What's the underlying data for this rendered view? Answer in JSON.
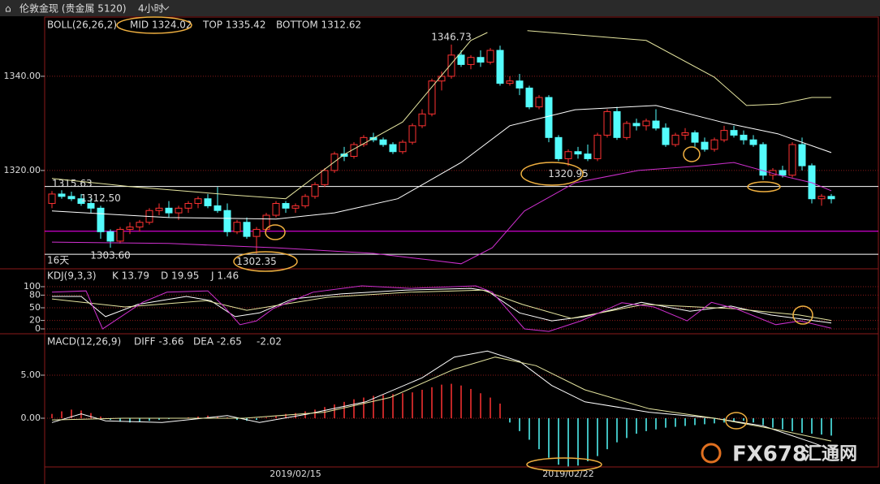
{
  "header": {
    "symbol": "伦敦金现 (贵金属 5120)",
    "period": "4小时",
    "days": "16天",
    "watermark": "FX678",
    "watermark_cn": "汇通网"
  },
  "chart_data": [
    {
      "type": "candlestick",
      "legend": {
        "name": "BOLL(26,26,2)",
        "mid": "MID 1324.02",
        "top": "TOP 1335.42",
        "bottom": "BOTTOM 1312.62"
      },
      "up_color": "#ff3232",
      "down_color": "#54fcfc",
      "grid": true,
      "ylim": [
        1299.3,
        1352.4
      ],
      "yticks": [
        {
          "value": 1340,
          "label": "1340.00"
        },
        {
          "value": 1320,
          "label": "1320.00"
        }
      ],
      "categories": [
        null,
        null,
        null,
        null,
        null,
        null,
        null,
        null,
        null,
        null,
        null,
        null,
        null,
        null,
        null,
        null,
        null,
        null,
        null,
        null,
        null,
        null,
        null,
        null,
        null,
        "2019/02/15",
        null,
        null,
        null,
        null,
        null,
        null,
        null,
        null,
        null,
        null,
        null,
        null,
        null,
        null,
        null,
        null,
        null,
        null,
        null,
        null,
        null,
        null,
        null,
        null,
        null,
        null,
        null,
        "2019/02/22",
        null,
        null,
        null,
        null,
        null,
        null,
        null,
        null,
        null,
        null,
        null,
        null,
        null,
        null,
        null,
        null,
        null,
        null,
        null,
        null,
        null,
        null,
        null,
        null,
        null,
        null,
        null
      ],
      "values": [
        [
          1313,
          1315.63,
          1312,
          1315
        ],
        [
          1315,
          1315.8,
          1314,
          1314.5
        ],
        [
          1314.5,
          1315.5,
          1313.5,
          1314
        ],
        [
          1314,
          1315,
          1312.5,
          1313
        ],
        [
          1313,
          1314,
          1311,
          1312
        ],
        [
          1312,
          1312.5,
          1305.5,
          1307
        ],
        [
          1307,
          1307.5,
          1303.6,
          1305
        ],
        [
          1305,
          1308,
          1304.5,
          1307.5
        ],
        [
          1307.5,
          1309,
          1306.5,
          1308
        ],
        [
          1308,
          1309.5,
          1307,
          1309
        ],
        [
          1309,
          1312,
          1308.5,
          1311.5
        ],
        [
          1311.5,
          1313,
          1310.5,
          1312
        ],
        [
          1312,
          1313.5,
          1310,
          1311
        ],
        [
          1311,
          1312.5,
          1309.5,
          1312
        ],
        [
          1312,
          1313.5,
          1311,
          1313
        ],
        [
          1313,
          1314.5,
          1312,
          1314
        ],
        [
          1314,
          1315,
          1312,
          1312.5
        ],
        [
          1312.5,
          1316.5,
          1311,
          1311.5
        ],
        [
          1311.5,
          1313,
          1306,
          1307
        ],
        [
          1307,
          1309.5,
          1306.5,
          1309
        ],
        [
          1309,
          1310,
          1305.5,
          1306
        ],
        [
          1306,
          1308,
          1302.35,
          1307.5
        ],
        [
          1307.5,
          1311,
          1307,
          1310.5
        ],
        [
          1310.5,
          1313.5,
          1310,
          1313
        ],
        [
          1313,
          1313.5,
          1311,
          1312
        ],
        [
          1312,
          1313,
          1311,
          1312.5
        ],
        [
          1312.5,
          1315,
          1312,
          1314.5
        ],
        [
          1314.5,
          1317.5,
          1314,
          1317
        ],
        [
          1317,
          1320.5,
          1316.5,
          1320
        ],
        [
          1320,
          1324,
          1319.5,
          1323.5
        ],
        [
          1323.5,
          1325,
          1322,
          1323
        ],
        [
          1323,
          1326,
          1322.5,
          1325.5
        ],
        [
          1325.5,
          1327.5,
          1325,
          1327
        ],
        [
          1327,
          1328,
          1326,
          1326.5
        ],
        [
          1326.5,
          1327,
          1325,
          1325.5
        ],
        [
          1325.5,
          1326,
          1323.5,
          1324
        ],
        [
          1324,
          1326.5,
          1323.5,
          1326
        ],
        [
          1326,
          1330,
          1325.5,
          1329.5
        ],
        [
          1329.5,
          1333,
          1329,
          1332
        ],
        [
          1332,
          1339.5,
          1331.5,
          1339
        ],
        [
          1339,
          1341,
          1337,
          1340
        ],
        [
          1340,
          1346.73,
          1339.5,
          1344.5
        ],
        [
          1344.5,
          1345.5,
          1342,
          1342.5
        ],
        [
          1342.5,
          1344.5,
          1341.5,
          1344
        ],
        [
          1344,
          1345.5,
          1342,
          1343
        ],
        [
          1343,
          1346,
          1342.5,
          1345.5
        ],
        [
          1345.5,
          1346.5,
          1338,
          1338.5
        ],
        [
          1338.5,
          1340,
          1338,
          1339
        ],
        [
          1339,
          1340.5,
          1336,
          1337.5
        ],
        [
          1337.5,
          1338,
          1333,
          1333.5
        ],
        [
          1333.5,
          1336,
          1333,
          1335.5
        ],
        [
          1335.5,
          1336,
          1326,
          1327
        ],
        [
          1327,
          1327.5,
          1322,
          1322.5
        ],
        [
          1322.5,
          1324.5,
          1320.95,
          1324
        ],
        [
          1324,
          1325,
          1322.5,
          1323.5
        ],
        [
          1323.5,
          1325.5,
          1322,
          1322.5
        ],
        [
          1322.5,
          1328,
          1322,
          1327.5
        ],
        [
          1327.5,
          1333,
          1327,
          1332.5
        ],
        [
          1332.5,
          1333.5,
          1326.5,
          1327
        ],
        [
          1327,
          1330.5,
          1326.5,
          1330
        ],
        [
          1330,
          1331,
          1328.5,
          1329.5
        ],
        [
          1329.5,
          1331,
          1328.5,
          1330.5
        ],
        [
          1330.5,
          1333,
          1328.5,
          1329
        ],
        [
          1329,
          1330,
          1325,
          1325.5
        ],
        [
          1325.5,
          1328,
          1325,
          1327.5
        ],
        [
          1327.5,
          1329,
          1326.5,
          1328
        ],
        [
          1328,
          1328.5,
          1325,
          1326
        ],
        [
          1326,
          1327,
          1324,
          1324.5
        ],
        [
          1324.5,
          1327,
          1324,
          1326.5
        ],
        [
          1326.5,
          1329.5,
          1326,
          1328.5
        ],
        [
          1328.5,
          1329.5,
          1327,
          1327.5
        ],
        [
          1327.5,
          1328.5,
          1325.5,
          1326.5
        ],
        [
          1326.5,
          1327.5,
          1325,
          1325.5
        ],
        [
          1325.5,
          1326,
          1318,
          1319
        ],
        [
          1319,
          1320.5,
          1318,
          1320
        ],
        [
          1320,
          1321,
          1318.5,
          1319
        ],
        [
          1319,
          1326,
          1318.5,
          1325.5
        ],
        [
          1325.5,
          1327,
          1320,
          1321
        ],
        [
          1321,
          1321.5,
          1313,
          1314
        ],
        [
          1314,
          1315,
          1312.5,
          1314.5
        ],
        [
          1314.5,
          1315,
          1313,
          1314
        ]
      ],
      "lines": [
        {
          "color": "#e6e6a0",
          "x": [
            0,
            8,
            18.5,
            24,
            30,
            36,
            43,
            44.7,
            46.7,
            48.8,
            61,
            68,
            71.3,
            74.7,
            78,
            80
          ],
          "values": [
            1318.3,
            1316.6,
            1314.8,
            1314,
            1323.4,
            1330.3,
            1347.6,
            1349.3,
            null,
            1349.7,
            1347.6,
            1339.8,
            1333.8,
            1334.1,
            1335.5,
            1335.5
          ]
        },
        {
          "color": "#ffffff",
          "x": [
            0,
            12,
            23,
            29,
            35.5,
            42,
            47,
            53.7,
            62,
            68.7,
            74.5,
            80
          ],
          "values": [
            1311.4,
            1310,
            1309.7,
            1311,
            1314,
            1321.7,
            1329.5,
            1332.9,
            1333.8,
            1330.3,
            1327.8,
            1323.8
          ]
        },
        {
          "color": "#d030d0",
          "x": [
            0,
            12,
            23,
            33,
            38.8,
            42,
            45.2,
            48.5,
            53.7,
            60.2,
            66,
            70,
            74.5,
            78,
            80
          ],
          "values": [
            1304.8,
            1304.5,
            1303.6,
            1302.4,
            1301,
            1300.2,
            1303.6,
            1311.4,
            1317.4,
            1320,
            1320.9,
            1321.7,
            1319.1,
            1317.4,
            1315.7
          ]
        }
      ],
      "hlines": [
        {
          "value": 1316.6,
          "color": "#ffffff"
        },
        {
          "value": 1307.1,
          "color": "#ff00ff"
        },
        {
          "value": 1302.2,
          "color": "#ffffff"
        }
      ],
      "annotations": [
        1346.73,
        1315.63,
        {
          "value": 1303.6,
          "label": "1303.60"
        },
        1302.35,
        1320.95,
        {
          "value": 1312.5,
          "label": "1312.50"
        }
      ]
    },
    {
      "type": "line",
      "legend": {
        "name": "KDJ(9,3,3)",
        "k": "K 13.79",
        "d": "D 19.95",
        "j": "J 1.46"
      },
      "grid": true,
      "ylim": [
        -9.6,
        138.5
      ],
      "yticks": [
        100,
        80,
        50,
        20,
        0
      ],
      "lines": [
        {
          "color": "#ffffff",
          "x": [
            0,
            3,
            5.5,
            8.8,
            13.8,
            16.3,
            18.8,
            21.3,
            24.7,
            29.7,
            36.3,
            43,
            44.7,
            48,
            51.3,
            54.7,
            60.5,
            65.5,
            69.7,
            73.8,
            80
          ],
          "values": [
            77,
            77,
            29,
            58,
            77,
            67,
            29,
            38,
            71,
            83,
            92,
            96,
            90,
            38,
            19,
            29,
            63,
            42,
            54,
            33,
            14
          ]
        },
        {
          "color": "#e6e6a0",
          "x": [
            0,
            7.5,
            15.8,
            20,
            28.3,
            36.7,
            44.2,
            48.3,
            53.3,
            60.8,
            70,
            76.7,
            80
          ],
          "values": [
            71,
            52,
            67,
            44,
            75,
            87,
            92,
            58,
            25,
            58,
            48,
            33,
            20
          ]
        },
        {
          "color": "#d030d0",
          "x": [
            0,
            3.5,
            5.2,
            9.3,
            11.8,
            16,
            17.7,
            19.3,
            21,
            22.7,
            26.8,
            31.8,
            36.8,
            43.5,
            45.2,
            48.5,
            51,
            54.3,
            58.5,
            61.8,
            65.2,
            67.7,
            70.2,
            74.3,
            76.8,
            80
          ],
          "values": [
            87,
            90,
            0,
            63,
            87,
            90,
            52,
            10,
            19,
            48,
            87,
            102,
            96,
            102,
            87,
            0,
            -6,
            19,
            62,
            52,
            19,
            63,
            48,
            10,
            19,
            1.5
          ]
        }
      ]
    },
    {
      "type": "line",
      "legend": {
        "name": "MACD(12,26,9)",
        "diff": "DIFF -3.66",
        "dea": "DEA -2.65",
        "macd": "-2.02"
      },
      "up_color": "#ff3232",
      "down_color": "#54fcfc",
      "grid": true,
      "ylim": [
        -5.66,
        9.62
      ],
      "yticks": [
        {
          "value": 5,
          "label": "5.00"
        },
        {
          "value": 0,
          "label": "0.00"
        }
      ],
      "lines": [
        {
          "color": "#ffffff",
          "x": [
            0,
            3,
            5.5,
            11.3,
            18,
            21.3,
            26.3,
            32.2,
            38,
            41.3,
            44.7,
            48,
            51.3,
            54.7,
            61.3,
            68,
            73,
            78,
            80
          ],
          "values": [
            -0.5,
            0.5,
            -0.3,
            -0.5,
            0.3,
            -0.5,
            0.5,
            1.9,
            4.7,
            7.1,
            7.8,
            6.6,
            3.8,
            1.9,
            0.7,
            0,
            -0.9,
            -2.8,
            -3.66
          ]
        },
        {
          "color": "#e6e6a0",
          "x": [
            0,
            7.3,
            19.7,
            28,
            34.7,
            41.3,
            45.5,
            49.7,
            54.7,
            61.3,
            68,
            74.7,
            80
          ],
          "values": [
            -0.2,
            0,
            0,
            0.7,
            2.4,
            5.7,
            7.1,
            6.1,
            3.3,
            1.1,
            0,
            -1.4,
            -2.65
          ]
        }
      ],
      "bars": [
        0.5,
        0.8,
        1.0,
        0.9,
        0.6,
        0.2,
        -0.2,
        -0.4,
        -0.5,
        -0.4,
        -0.3,
        -0.2,
        -0.1,
        0,
        0.1,
        0.2,
        0.3,
        0.2,
        0.1,
        -0.2,
        -0.3,
        -0.2,
        0.1,
        0.3,
        0.5,
        0.6,
        0.8,
        1.0,
        1.3,
        1.6,
        1.9,
        2.2,
        2.4,
        2.6,
        2.7,
        2.8,
        2.9,
        3.0,
        3.3,
        3.6,
        3.9,
        4.0,
        3.8,
        3.4,
        2.9,
        2.4,
        1.7,
        -0.5,
        -1.5,
        -2.5,
        -3.6,
        -4.6,
        -5.4,
        -5.6,
        -5.5,
        -5.0,
        -4.4,
        -3.6,
        -2.8,
        -2.3,
        -1.8,
        -1.5,
        -1.3,
        -1.1,
        -1.0,
        -0.9,
        -0.8,
        -0.7,
        -0.6,
        -0.5,
        -0.4,
        -0.3,
        -0.5,
        -0.8,
        -1.1,
        -1.3,
        -1.5,
        -1.7,
        -1.8,
        -1.9,
        -2.02
      ]
    }
  ]
}
